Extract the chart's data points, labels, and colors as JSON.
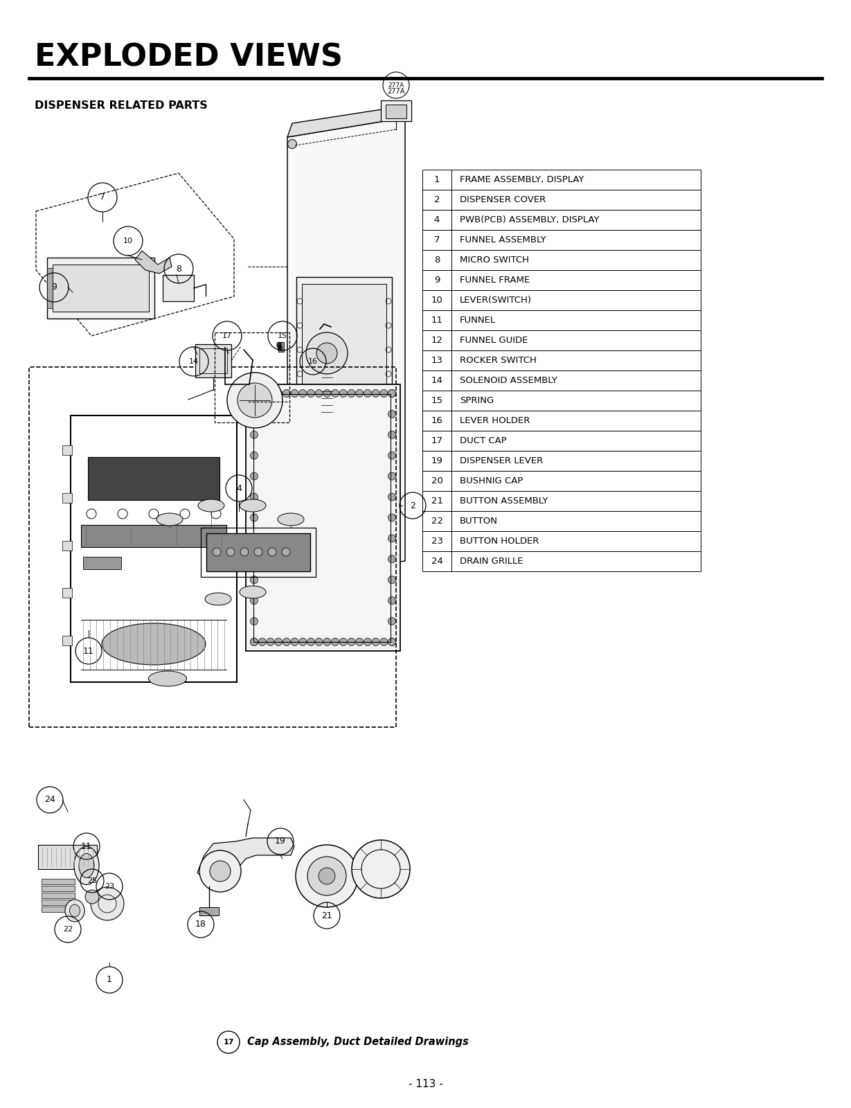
{
  "title": "EXPLODED VIEWS",
  "subtitle": "DISPENSER RELATED PARTS",
  "page_num": "- 113 -",
  "footer_note_circle": "17",
  "footer_note_text": " Cap Assembly, Duct Detailed Drawings",
  "table_data": [
    [
      "1",
      "FRAME ASSEMBLY, DISPLAY"
    ],
    [
      "2",
      "DISPENSER COVER"
    ],
    [
      "4",
      "PWB(PCB) ASSEMBLY, DISPLAY"
    ],
    [
      "7",
      "FUNNEL ASSEMBLY"
    ],
    [
      "8",
      "MICRO SWITCH"
    ],
    [
      "9",
      "FUNNEL FRAME"
    ],
    [
      "10",
      "LEVER(SWITCH)"
    ],
    [
      "11",
      "FUNNEL"
    ],
    [
      "12",
      "FUNNEL GUIDE"
    ],
    [
      "13",
      "ROCKER SWITCH"
    ],
    [
      "14",
      "SOLENOID ASSEMBLY"
    ],
    [
      "15",
      "SPRING"
    ],
    [
      "16",
      "LEVER HOLDER"
    ],
    [
      "17",
      "DUCT CAP"
    ],
    [
      "19",
      "DISPENSER LEVER"
    ],
    [
      "20",
      "BUSHNIG CAP"
    ],
    [
      "21",
      "BUTTON ASSEMBLY"
    ],
    [
      "22",
      "BUTTON"
    ],
    [
      "23",
      "BUTTON HOLDER"
    ],
    [
      "24",
      "DRAIN GRILLE"
    ]
  ],
  "bg_color": "#ffffff",
  "text_color": "#000000",
  "fig_width": 12.29,
  "fig_height": 16.0,
  "dpi": 100
}
